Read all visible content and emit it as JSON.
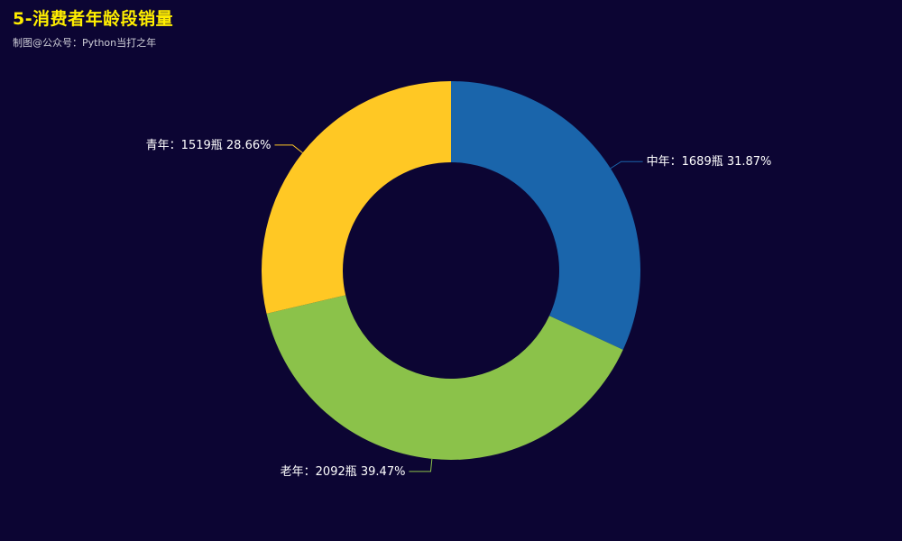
{
  "title": "5-消费者年龄段销量",
  "subtitle": "制图@公众号：Python当打之年",
  "chart_data": {
    "type": "pie",
    "donut": true,
    "series": [
      {
        "name": "中年",
        "value": 1689,
        "unit": "瓶",
        "percent": "31.87%",
        "color": "#1a65ab",
        "label": "中年：1689瓶 31.87%"
      },
      {
        "name": "老年",
        "value": 2092,
        "unit": "瓶",
        "percent": "39.47%",
        "color": "#8bc24a",
        "label": "老年：2092瓶 39.47%"
      },
      {
        "name": "青年",
        "value": 1519,
        "unit": "瓶",
        "percent": "28.66%",
        "color": "#ffc824",
        "label": "青年：1519瓶 28.66%"
      }
    ]
  }
}
